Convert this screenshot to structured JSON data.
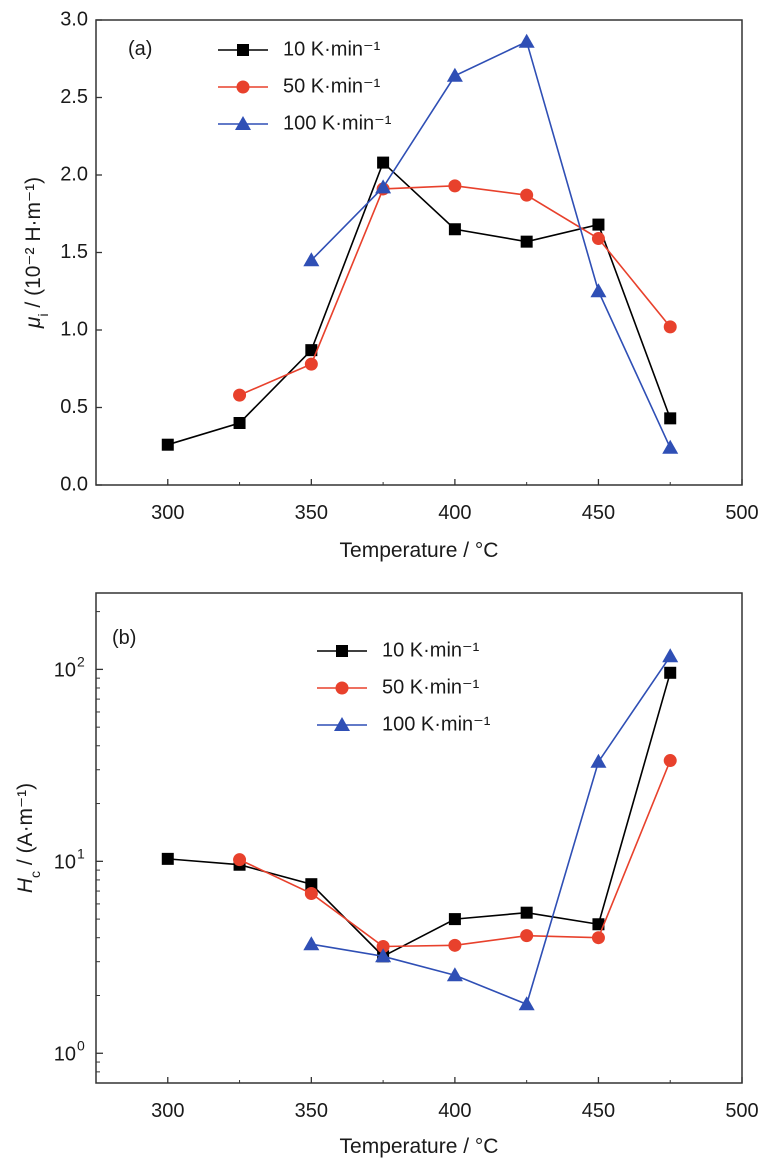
{
  "chart_data": [
    {
      "type": "line",
      "panel_label": "(a)",
      "xlabel": "Temperature / °C",
      "ylabel": {
        "symbol": "μ",
        "sub": "i",
        "unit": " / (10⁻² H·m⁻¹)"
      },
      "xlim": [
        275,
        500
      ],
      "ylim": [
        0,
        3.0
      ],
      "yscale": "linear",
      "x_ticks": [
        300,
        350,
        400,
        450,
        500
      ],
      "y_ticks": [
        "0.0",
        "0.5",
        "1.0",
        "1.5",
        "2.0",
        "2.5",
        "3.0"
      ],
      "legend_position": "top-left",
      "series": [
        {
          "name": "10 K·min⁻¹",
          "color": "#000000",
          "marker": "square",
          "x": [
            300,
            325,
            350,
            375,
            400,
            425,
            450,
            475
          ],
          "y": [
            0.26,
            0.4,
            0.87,
            2.08,
            1.65,
            1.57,
            1.68,
            0.43
          ]
        },
        {
          "name": "50 K·min⁻¹",
          "color": "#e8412c",
          "marker": "circle",
          "x": [
            325,
            350,
            375,
            400,
            425,
            450,
            475
          ],
          "y": [
            0.58,
            0.78,
            1.91,
            1.93,
            1.87,
            1.59,
            1.02
          ]
        },
        {
          "name": "100 K·min⁻¹",
          "color": "#2f4fb5",
          "marker": "triangle",
          "x": [
            350,
            375,
            400,
            425,
            450,
            475
          ],
          "y": [
            1.45,
            1.92,
            2.64,
            2.86,
            1.25,
            0.24
          ]
        }
      ]
    },
    {
      "type": "line",
      "panel_label": "(b)",
      "xlabel": "Temperature / °C",
      "ylabel": {
        "symbol": "H",
        "sub": "c",
        "unit": " / (A·m⁻¹)"
      },
      "xlim": [
        275,
        500
      ],
      "ylim": [
        0.7,
        250
      ],
      "yscale": "log",
      "x_ticks": [
        300,
        350,
        400,
        450,
        500
      ],
      "y_ticks": [
        1,
        10,
        100
      ],
      "y_tick_labels": [
        "10",
        "10",
        "10"
      ],
      "y_tick_exponents": [
        "0",
        "1",
        "2"
      ],
      "legend_position": "top-center",
      "series": [
        {
          "name": "10 K·min⁻¹",
          "color": "#000000",
          "marker": "square",
          "x": [
            300,
            325,
            350,
            375,
            400,
            425,
            450,
            475
          ],
          "y": [
            10.3,
            9.6,
            7.6,
            3.2,
            5.0,
            5.4,
            4.7,
            96
          ]
        },
        {
          "name": "50 K·min⁻¹",
          "color": "#e8412c",
          "marker": "circle",
          "x": [
            325,
            350,
            375,
            400,
            425,
            450,
            475
          ],
          "y": [
            10.2,
            6.8,
            3.6,
            3.65,
            4.1,
            4.0,
            33.5
          ]
        },
        {
          "name": "100 K·min⁻¹",
          "color": "#2f4fb5",
          "marker": "triangle",
          "x": [
            350,
            375,
            400,
            425,
            450,
            475
          ],
          "y": [
            3.7,
            3.2,
            2.55,
            1.8,
            33,
            117
          ]
        }
      ]
    }
  ]
}
